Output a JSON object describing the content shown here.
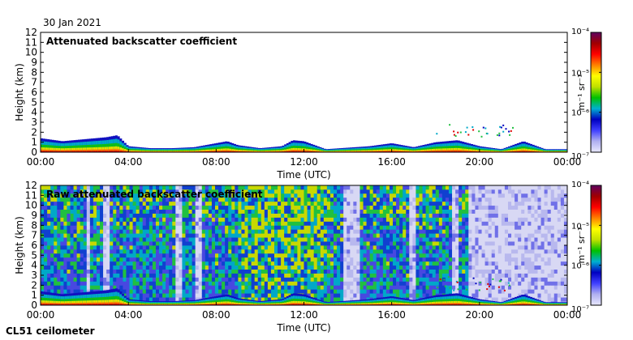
{
  "date_label": "30 Jan 2021",
  "instrument_label": "CL51 ceilometer",
  "colors": {
    "bg_low": "#e6e6f7",
    "scale": [
      "#c8c8f0",
      "#4040ff",
      "#0000c8",
      "#00c8c8",
      "#00c800",
      "#ffff00",
      "#ff8000",
      "#ff0000",
      "#a00000",
      "#600060"
    ]
  },
  "chart_data": [
    {
      "type": "heatmap",
      "title": "Attenuated backscatter coefficient",
      "xlabel": "Time (UTC)",
      "ylabel": "Height (km)",
      "x_ticks": [
        "00:00",
        "04:00",
        "08:00",
        "12:00",
        "16:00",
        "20:00",
        "00:00"
      ],
      "y_ticks": [
        "0",
        "1",
        "2",
        "3",
        "4",
        "5",
        "6",
        "7",
        "8",
        "9",
        "10",
        "11",
        "12"
      ],
      "ylim": [
        0,
        12
      ],
      "colorbar": {
        "label": "m⁻¹ sr⁻¹",
        "scale": "log",
        "range": [
          "10⁻⁷",
          "10⁻⁴"
        ],
        "ticks": [
          "10⁻⁴",
          "10⁻⁵",
          "10⁻⁶",
          "10⁻⁷"
        ]
      },
      "features": {
        "boundary_layer_top_km": [
          [
            0.0,
            1.4
          ],
          [
            1.0,
            1.1
          ],
          [
            2.0,
            1.3
          ],
          [
            3.0,
            1.5
          ],
          [
            3.5,
            1.7
          ],
          [
            4.0,
            0.6
          ],
          [
            5.0,
            0.4
          ],
          [
            6.0,
            0.4
          ],
          [
            7.0,
            0.5
          ],
          [
            8.0,
            0.9
          ],
          [
            8.5,
            1.1
          ],
          [
            9.0,
            0.7
          ],
          [
            10.0,
            0.4
          ],
          [
            11.0,
            0.6
          ],
          [
            11.5,
            1.2
          ],
          [
            12.0,
            1.1
          ],
          [
            13.0,
            0.3
          ],
          [
            15.0,
            0.6
          ],
          [
            16.0,
            0.9
          ],
          [
            17.0,
            0.5
          ],
          [
            18.0,
            1.0
          ],
          [
            19.0,
            1.2
          ],
          [
            20.0,
            0.6
          ],
          [
            21.0,
            0.3
          ],
          [
            22.0,
            1.1
          ],
          [
            23.0,
            0.3
          ],
          [
            24.0,
            0.3
          ]
        ]
      }
    },
    {
      "type": "heatmap",
      "title": "Raw attenuated backscatter coefficient",
      "xlabel": "Time (UTC)",
      "ylabel": "Height (km)",
      "x_ticks": [
        "00:00",
        "04:00",
        "08:00",
        "12:00",
        "16:00",
        "20:00",
        "00:00"
      ],
      "y_ticks": [
        "0",
        "1",
        "2",
        "3",
        "4",
        "5",
        "6",
        "7",
        "8",
        "9",
        "10",
        "11",
        "12"
      ],
      "ylim": [
        0,
        12
      ],
      "colorbar": {
        "label": "m⁻¹ sr⁻¹",
        "scale": "log",
        "range": [
          "10⁻⁷",
          "10⁻⁴"
        ],
        "ticks": [
          "10⁻⁴",
          "10⁻⁵",
          "10⁻⁶",
          "10⁻⁷"
        ]
      },
      "features": {
        "noisy_background_hours": [
          [
            0,
            19.5
          ]
        ],
        "quiet_background_hours": [
          [
            19.5,
            24
          ]
        ],
        "clear_gaps_hours": [
          [
            2.1,
            2.3
          ],
          [
            2.9,
            3.1
          ],
          [
            6.2,
            6.4
          ],
          [
            7.1,
            7.3
          ],
          [
            13.8,
            14.5
          ],
          [
            16.8,
            17.1
          ],
          [
            18.7,
            19.0
          ]
        ],
        "boundary_layer_top_km": [
          [
            0.0,
            1.4
          ],
          [
            1.0,
            1.1
          ],
          [
            2.0,
            1.3
          ],
          [
            3.0,
            1.5
          ],
          [
            3.5,
            1.7
          ],
          [
            4.0,
            0.6
          ],
          [
            5.0,
            0.4
          ],
          [
            6.0,
            0.4
          ],
          [
            7.0,
            0.5
          ],
          [
            8.0,
            0.9
          ],
          [
            8.5,
            1.1
          ],
          [
            9.0,
            0.7
          ],
          [
            10.0,
            0.4
          ],
          [
            11.0,
            0.6
          ],
          [
            11.5,
            1.2
          ],
          [
            12.0,
            1.1
          ],
          [
            13.0,
            0.3
          ],
          [
            15.0,
            0.6
          ],
          [
            16.0,
            0.9
          ],
          [
            17.0,
            0.5
          ],
          [
            18.0,
            1.0
          ],
          [
            19.0,
            1.2
          ],
          [
            20.0,
            0.6
          ],
          [
            21.0,
            0.3
          ],
          [
            22.0,
            1.1
          ],
          [
            23.0,
            0.3
          ],
          [
            24.0,
            0.3
          ]
        ]
      }
    }
  ]
}
